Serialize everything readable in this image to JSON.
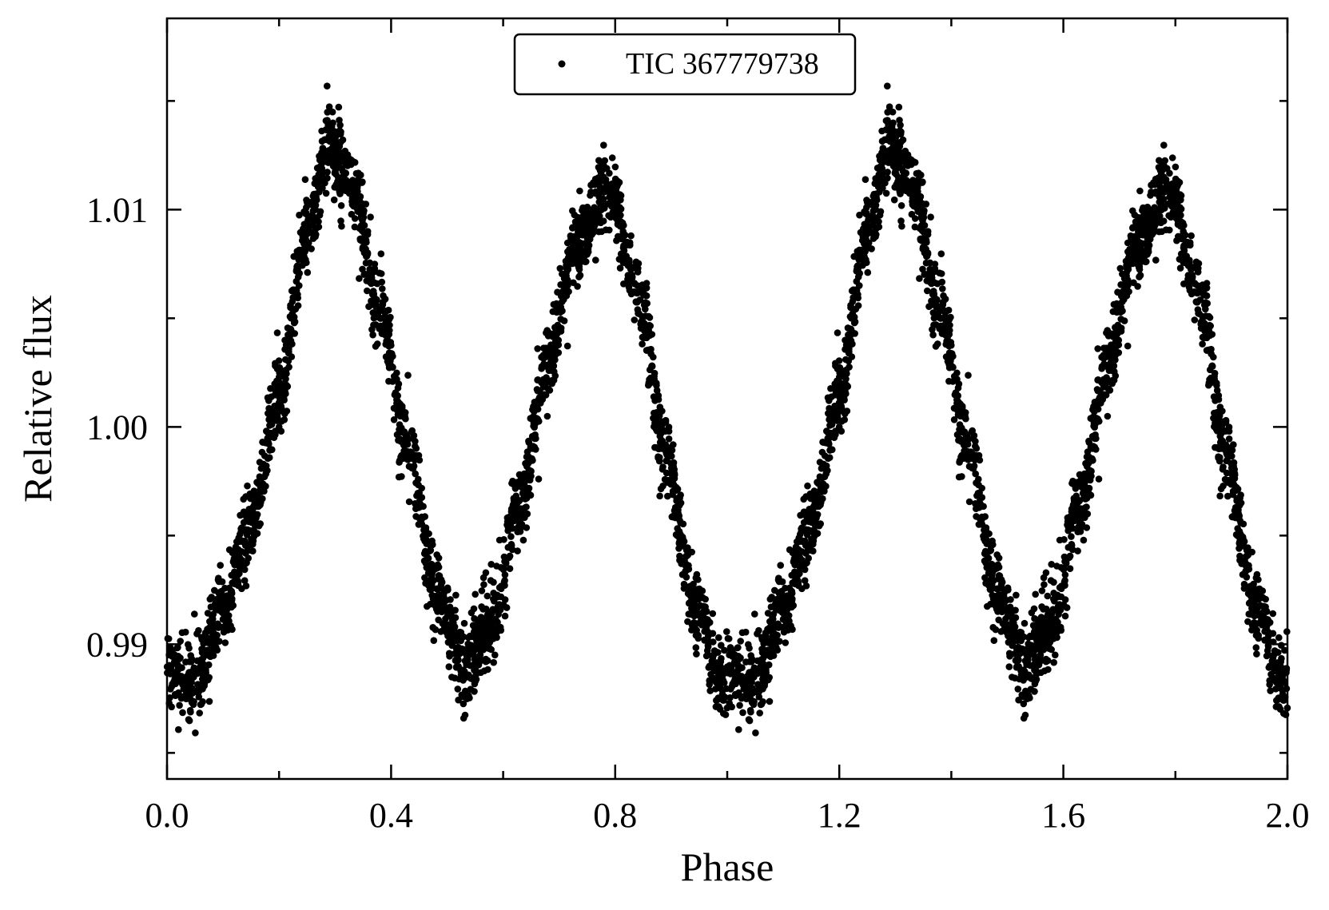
{
  "chart_data": {
    "type": "scatter",
    "title": "",
    "xlabel": "Phase",
    "ylabel": "Relative flux",
    "xlim": [
      0.0,
      2.0
    ],
    "ylim": [
      0.9838,
      1.0188
    ],
    "x_ticks": [
      {
        "value": 0.0,
        "label": "0.0"
      },
      {
        "value": 0.4,
        "label": "0.4"
      },
      {
        "value": 0.8,
        "label": "0.8"
      },
      {
        "value": 1.2,
        "label": "1.2"
      },
      {
        "value": 1.6,
        "label": "1.6"
      },
      {
        "value": 2.0,
        "label": "2.0"
      }
    ],
    "x_minor_ticks": [
      0.2,
      0.6,
      1.0,
      1.4,
      1.8
    ],
    "y_ticks": [
      {
        "value": 0.99,
        "label": "0.99"
      },
      {
        "value": 1.0,
        "label": "1.00"
      },
      {
        "value": 1.01,
        "label": "1.01"
      }
    ],
    "y_minor_ticks": [
      0.985,
      0.995,
      1.005,
      1.015
    ],
    "grid": false,
    "legend_position": "top-center",
    "marker_color": "#000000",
    "series": [
      {
        "name": "TIC 367779738",
        "marker": "circle",
        "phase_curve": {
          "phase": [
            0.0,
            0.05,
            0.1,
            0.15,
            0.2,
            0.25,
            0.29,
            0.33,
            0.38,
            0.43,
            0.48,
            0.53,
            0.58,
            0.63,
            0.68,
            0.73,
            0.79,
            0.84,
            0.89,
            0.94,
            0.99,
            1.0
          ],
          "flux": [
            0.9887,
            0.9883,
            0.9915,
            0.9957,
            1.0015,
            1.009,
            1.013,
            1.0112,
            1.0055,
            0.999,
            0.9925,
            0.989,
            0.991,
            0.9965,
            1.003,
            1.0085,
            1.011,
            1.006,
            0.999,
            0.992,
            0.9885,
            0.9887
          ]
        },
        "scatter_sigma": 0.0009,
        "points_per_cycle": 2600,
        "repeated_cycles": 2
      }
    ]
  }
}
